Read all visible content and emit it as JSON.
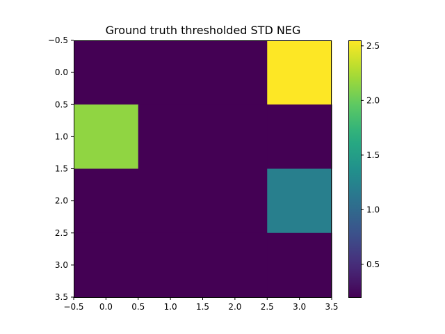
{
  "chart_data": {
    "type": "heatmap",
    "title": "Ground truth thresholded STD NEG",
    "xlabel": "",
    "ylabel": "",
    "xlim": [
      -0.5,
      3.5
    ],
    "ylim": [
      3.5,
      -0.5
    ],
    "grid": false,
    "colormap": "viridis",
    "rows": [
      0,
      1,
      2,
      3
    ],
    "cols": [
      0,
      1,
      2,
      3
    ],
    "values": [
      [
        0.2,
        0.2,
        0.2,
        2.55
      ],
      [
        2.15,
        0.2,
        0.2,
        0.2
      ],
      [
        0.2,
        0.2,
        0.2,
        1.2
      ],
      [
        0.2,
        0.2,
        0.2,
        0.2
      ]
    ],
    "x_ticks": [
      "−0.5",
      "0.0",
      "0.5",
      "1.0",
      "1.5",
      "2.0",
      "2.5",
      "3.0",
      "3.5"
    ],
    "y_ticks": [
      "−0.5",
      "0.0",
      "0.5",
      "1.0",
      "1.5",
      "2.0",
      "2.5",
      "3.0",
      "3.5"
    ],
    "colorbar": {
      "vmin": 0.2,
      "vmax": 2.55,
      "ticks": [
        0.5,
        1.0,
        1.5,
        2.0,
        2.5
      ],
      "tick_labels": [
        "0.5",
        "1.0",
        "1.5",
        "2.0",
        "2.5"
      ]
    }
  }
}
